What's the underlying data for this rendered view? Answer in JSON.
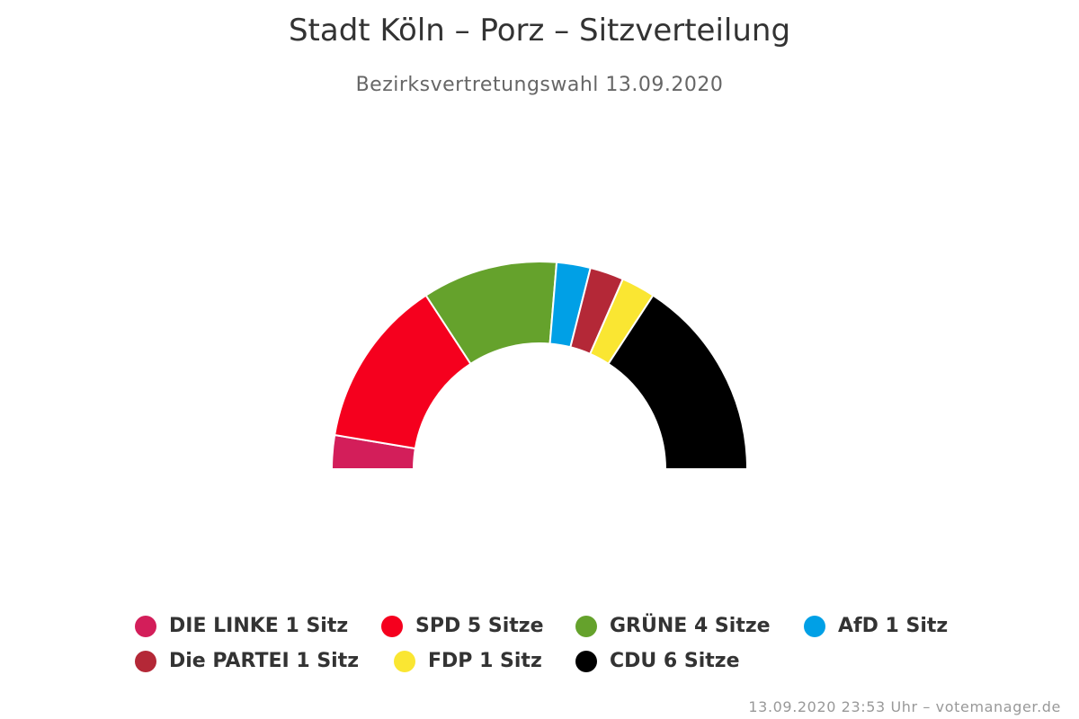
{
  "title": "Stadt Köln – Porz – Sitzverteilung",
  "subtitle": "Bezirksvertretungswahl 13.09.2020",
  "credits": "13.09.2020 23:53 Uhr – votemanager.de",
  "chart_data": {
    "type": "pie",
    "variant": "semicircle",
    "title": "Stadt Köln – Porz – Sitzverteilung",
    "subtitle": "Bezirksvertretungswahl 13.09.2020",
    "legend_position": "bottom",
    "categories": [
      "DIE LINKE",
      "SPD",
      "GRÜNE",
      "AfD",
      "Die PARTEI",
      "FDP",
      "CDU"
    ],
    "values": [
      1,
      5,
      4,
      1,
      1,
      1,
      6
    ],
    "colors": [
      "#d31e5a",
      "#f5001e",
      "#65a22c",
      "#00a0e6",
      "#b42837",
      "#fae632",
      "#000000"
    ],
    "legend_labels": [
      "DIE LINKE 1 Sitz",
      "SPD 5 Sitze",
      "GRÜNE 4 Sitze",
      "AfD 1 Sitz",
      "Die PARTEI 1 Sitz",
      "FDP 1 Sitz",
      "CDU 6 Sitze"
    ]
  }
}
